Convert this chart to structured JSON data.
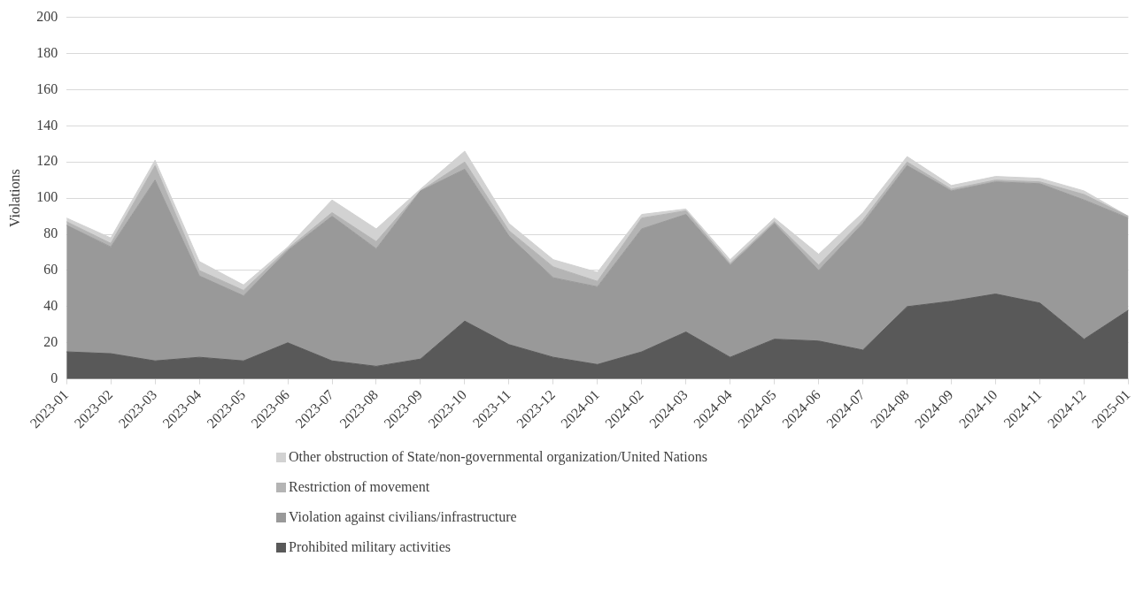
{
  "chart_data": {
    "type": "area",
    "stacked": true,
    "ylabel": "Violations",
    "categories": [
      "2023-01",
      "2023-02",
      "2023-03",
      "2023-04",
      "2023-05",
      "2023-06",
      "2023-07",
      "2023-08",
      "2023-09",
      "2023-10",
      "2023-11",
      "2023-12",
      "2024-01",
      "2024-02",
      "2024-03",
      "2024-04",
      "2024-05",
      "2024-06",
      "2024-07",
      "2024-08",
      "2024-09",
      "2024-10",
      "2024-11",
      "2024-12",
      "2025-01"
    ],
    "series": [
      {
        "name": "Prohibited military activities",
        "color": "#595959",
        "values": [
          15,
          14,
          10,
          12,
          10,
          20,
          10,
          7,
          11,
          32,
          19,
          12,
          8,
          15,
          26,
          12,
          22,
          21,
          16,
          40,
          43,
          47,
          42,
          22,
          38
        ]
      },
      {
        "name": "Violation against civilians/infrastructure",
        "color": "#999999",
        "values": [
          70,
          59,
          100,
          45,
          36,
          51,
          80,
          65,
          93,
          84,
          60,
          44,
          43,
          68,
          65,
          51,
          64,
          39,
          70,
          78,
          61,
          62,
          66,
          77,
          51
        ]
      },
      {
        "name": "Restriction of movement",
        "color": "#b4b4b4",
        "values": [
          2,
          2,
          8,
          3,
          3,
          1,
          2,
          4,
          0,
          4,
          3,
          6,
          3,
          6,
          2,
          1,
          1,
          3,
          2,
          2,
          1,
          1,
          1,
          3,
          1
        ]
      },
      {
        "name": "Other obstruction of State/non-governmental organization/United Nations",
        "color": "#d2d2d2",
        "values": [
          2,
          3,
          3,
          5,
          3,
          1,
          7,
          7,
          1,
          6,
          4,
          4,
          5,
          2,
          1,
          2,
          2,
          6,
          4,
          3,
          2,
          2,
          2,
          2,
          0
        ]
      }
    ],
    "ylim": [
      0,
      200
    ],
    "yticks": [
      0,
      20,
      40,
      60,
      80,
      100,
      120,
      140,
      160,
      180,
      200
    ],
    "grid": "y",
    "legend": "bottom"
  }
}
